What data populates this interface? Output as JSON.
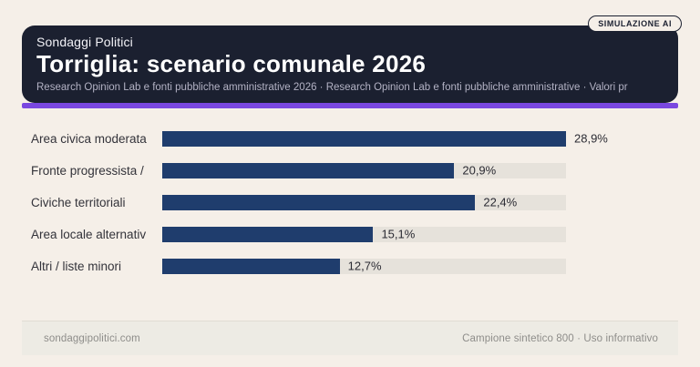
{
  "badge": "SIMULAZIONE AI",
  "header": {
    "kicker": "Sondaggi Politici",
    "title": "Torriglia: scenario comunale 2026",
    "subtitle": "Research Opinion Lab e fonti pubbliche amministrative 2026 · Research Opinion Lab e fonti pubbliche amministrative · Valori pr"
  },
  "chart_data": {
    "type": "bar",
    "orientation": "horizontal",
    "title": "Torriglia: scenario comunale 2026",
    "categories": [
      "Area civica moderata",
      "Fronte progressista /",
      "Civiche territoriali",
      "Area locale alternativ",
      "Altri / liste minori"
    ],
    "values": [
      28.9,
      20.9,
      22.4,
      15.1,
      12.7
    ],
    "value_labels": [
      "28,9%",
      "20,9%",
      "22,4%",
      "15,1%",
      "12,7%"
    ],
    "xlim": [
      0,
      28.9
    ],
    "unit": "%",
    "grid": false,
    "legend": false
  },
  "footer": {
    "left": "sondaggipolitici.com",
    "right": "Campione sintetico 800 · Uso informativo"
  },
  "colors": {
    "background": "#f5efe8",
    "header_bg": "#1b2030",
    "accent": "#7a47e0",
    "bar": "#1f3d6d",
    "track": "#e6e2db"
  }
}
